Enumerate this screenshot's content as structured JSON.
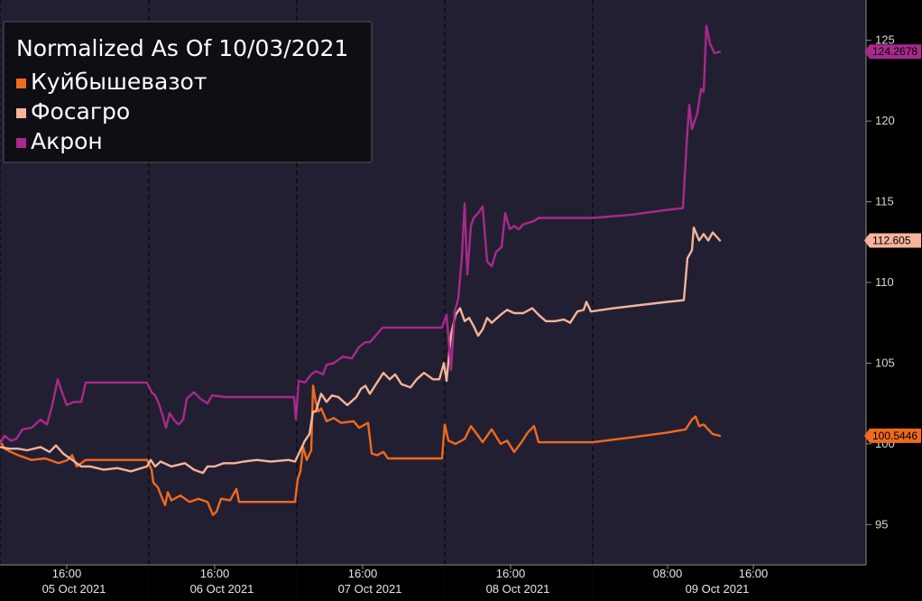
{
  "chart_data": {
    "type": "line",
    "title": "Normalized As Of 10/03/2021",
    "xlabel": "",
    "ylabel": "",
    "ylim": [
      92.5,
      127.5
    ],
    "yticks": [
      95,
      100,
      105,
      110,
      115,
      120,
      125
    ],
    "grid": "vertical day separators (dashed)",
    "legend_position": "top-left",
    "x_major_labels": [
      "05 Oct 2021",
      "06 Oct 2021",
      "07 Oct 2021",
      "08 Oct 2021",
      "09 Oct 2021"
    ],
    "x_minor_labels": [
      "16:00",
      "16:00",
      "16:00",
      "16:00",
      "08:00",
      "16:00"
    ],
    "series": [
      {
        "name": "Куйбышевазот",
        "color": "#f06a1d",
        "last_value": "100.5446",
        "values": [
          [
            0,
            100.2
          ],
          [
            5,
            99.7
          ],
          [
            12,
            99.5
          ],
          [
            20,
            99.3
          ],
          [
            35,
            99.0
          ],
          [
            50,
            99.1
          ],
          [
            65,
            98.8
          ],
          [
            75,
            99.0
          ],
          [
            80,
            99.3
          ],
          [
            85,
            98.6
          ],
          [
            95,
            99.0
          ],
          [
            120,
            99.0
          ],
          [
            150,
            99.0
          ],
          [
            163,
            99.0
          ],
          [
            168,
            98.4
          ],
          [
            170,
            97.6
          ],
          [
            175,
            97.3
          ],
          [
            180,
            96.6
          ],
          [
            183,
            96.2
          ],
          [
            186,
            97.0
          ],
          [
            190,
            96.5
          ],
          [
            200,
            96.8
          ],
          [
            210,
            96.4
          ],
          [
            220,
            96.6
          ],
          [
            230,
            96.4
          ],
          [
            236,
            95.6
          ],
          [
            240,
            95.8
          ],
          [
            245,
            96.6
          ],
          [
            255,
            96.5
          ],
          [
            262,
            97.2
          ],
          [
            265,
            96.4
          ],
          [
            280,
            96.4
          ],
          [
            300,
            96.4
          ],
          [
            327,
            96.4
          ],
          [
            330,
            97.8
          ],
          [
            333,
            98.3
          ],
          [
            336,
            99.8
          ],
          [
            340,
            99.0
          ],
          [
            345,
            99.6
          ],
          [
            347,
            103.6
          ],
          [
            350,
            102.6
          ],
          [
            353,
            102.0
          ],
          [
            356,
            102.2
          ],
          [
            362,
            101.4
          ],
          [
            370,
            101.6
          ],
          [
            378,
            101.3
          ],
          [
            392,
            101.4
          ],
          [
            398,
            101.0
          ],
          [
            408,
            101.3
          ],
          [
            412,
            99.4
          ],
          [
            418,
            99.3
          ],
          [
            425,
            99.5
          ],
          [
            430,
            99.1
          ],
          [
            450,
            99.1
          ],
          [
            470,
            99.1
          ],
          [
            490,
            99.1
          ],
          [
            493,
            101.2
          ],
          [
            497,
            100.2
          ],
          [
            505,
            100.0
          ],
          [
            515,
            100.3
          ],
          [
            522,
            101.1
          ],
          [
            530,
            100.5
          ],
          [
            535,
            100.1
          ],
          [
            545,
            100.9
          ],
          [
            555,
            100.0
          ],
          [
            562,
            100.2
          ],
          [
            570,
            99.5
          ],
          [
            578,
            100.1
          ],
          [
            585,
            100.7
          ],
          [
            592,
            101.1
          ],
          [
            597,
            100.1
          ],
          [
            620,
            100.1
          ],
          [
            657,
            100.1
          ],
          [
            700,
            100.4
          ],
          [
            740,
            100.7
          ],
          [
            760,
            100.9
          ],
          [
            767,
            101.5
          ],
          [
            771,
            101.7
          ],
          [
            775,
            101.1
          ],
          [
            780,
            101.2
          ],
          [
            785,
            100.9
          ],
          [
            790,
            100.6
          ],
          [
            798,
            100.5
          ]
        ]
      },
      {
        "name": "Фосагро",
        "color": "#f5b49a",
        "last_value": "112.605",
        "values": [
          [
            0,
            99.8
          ],
          [
            10,
            99.7
          ],
          [
            20,
            99.7
          ],
          [
            30,
            99.6
          ],
          [
            45,
            99.8
          ],
          [
            55,
            99.5
          ],
          [
            62,
            99.9
          ],
          [
            70,
            99.4
          ],
          [
            80,
            99.0
          ],
          [
            90,
            98.6
          ],
          [
            100,
            98.6
          ],
          [
            115,
            98.4
          ],
          [
            130,
            98.5
          ],
          [
            145,
            98.3
          ],
          [
            163,
            98.6
          ],
          [
            167,
            99.0
          ],
          [
            172,
            98.6
          ],
          [
            178,
            98.9
          ],
          [
            190,
            98.6
          ],
          [
            205,
            98.8
          ],
          [
            215,
            98.4
          ],
          [
            225,
            98.2
          ],
          [
            230,
            98.6
          ],
          [
            238,
            98.6
          ],
          [
            248,
            98.8
          ],
          [
            260,
            98.8
          ],
          [
            270,
            98.9
          ],
          [
            285,
            99.0
          ],
          [
            300,
            98.9
          ],
          [
            320,
            99.0
          ],
          [
            327,
            98.9
          ],
          [
            333,
            99.6
          ],
          [
            338,
            100.2
          ],
          [
            343,
            100.6
          ],
          [
            347,
            102.0
          ],
          [
            350,
            102.0
          ],
          [
            356,
            103.1
          ],
          [
            362,
            102.6
          ],
          [
            368,
            103.0
          ],
          [
            375,
            102.9
          ],
          [
            385,
            102.4
          ],
          [
            395,
            102.9
          ],
          [
            400,
            103.4
          ],
          [
            405,
            103.6
          ],
          [
            410,
            103.1
          ],
          [
            418,
            103.8
          ],
          [
            425,
            104.4
          ],
          [
            432,
            104.0
          ],
          [
            438,
            104.3
          ],
          [
            445,
            103.7
          ],
          [
            455,
            103.5
          ],
          [
            462,
            104.0
          ],
          [
            470,
            104.4
          ],
          [
            480,
            104.0
          ],
          [
            487,
            104.0
          ],
          [
            492,
            105.0
          ],
          [
            495,
            103.9
          ],
          [
            500,
            106.8
          ],
          [
            505,
            108.0
          ],
          [
            510,
            108.4
          ],
          [
            515,
            107.6
          ],
          [
            520,
            107.8
          ],
          [
            525,
            107.3
          ],
          [
            530,
            106.7
          ],
          [
            535,
            107.1
          ],
          [
            540,
            107.8
          ],
          [
            545,
            107.5
          ],
          [
            555,
            108.0
          ],
          [
            562,
            108.3
          ],
          [
            570,
            108.1
          ],
          [
            580,
            108.1
          ],
          [
            590,
            108.4
          ],
          [
            597,
            108.0
          ],
          [
            605,
            107.6
          ],
          [
            615,
            107.6
          ],
          [
            625,
            107.7
          ],
          [
            632,
            107.5
          ],
          [
            640,
            108.2
          ],
          [
            647,
            108.3
          ],
          [
            650,
            108.8
          ],
          [
            655,
            108.2
          ],
          [
            680,
            108.4
          ],
          [
            710,
            108.6
          ],
          [
            740,
            108.8
          ],
          [
            758,
            108.9
          ],
          [
            762,
            111.5
          ],
          [
            767,
            112.0
          ],
          [
            769,
            113.4
          ],
          [
            775,
            112.6
          ],
          [
            780,
            113.0
          ],
          [
            785,
            112.6
          ],
          [
            790,
            113.1
          ],
          [
            798,
            112.6
          ]
        ]
      },
      {
        "name": "Акрон",
        "color": "#a72a8c",
        "last_value": "124.2678",
        "values": [
          [
            0,
            100.0
          ],
          [
            5,
            100.5
          ],
          [
            12,
            100.2
          ],
          [
            18,
            100.3
          ],
          [
            25,
            100.9
          ],
          [
            35,
            101.0
          ],
          [
            45,
            101.5
          ],
          [
            52,
            101.2
          ],
          [
            58,
            102.4
          ],
          [
            64,
            104.0
          ],
          [
            68,
            103.3
          ],
          [
            74,
            102.4
          ],
          [
            82,
            102.6
          ],
          [
            90,
            102.6
          ],
          [
            95,
            103.8
          ],
          [
            100,
            103.8
          ],
          [
            120,
            103.8
          ],
          [
            150,
            103.8
          ],
          [
            163,
            103.8
          ],
          [
            168,
            103.2
          ],
          [
            172,
            103.0
          ],
          [
            176,
            102.5
          ],
          [
            180,
            101.8
          ],
          [
            184,
            101.0
          ],
          [
            188,
            101.9
          ],
          [
            194,
            101.4
          ],
          [
            198,
            101.2
          ],
          [
            203,
            101.5
          ],
          [
            207,
            102.8
          ],
          [
            215,
            103.2
          ],
          [
            222,
            102.8
          ],
          [
            230,
            102.5
          ],
          [
            235,
            103.0
          ],
          [
            250,
            102.9
          ],
          [
            270,
            102.9
          ],
          [
            300,
            102.9
          ],
          [
            326,
            102.9
          ],
          [
            328,
            101.5
          ],
          [
            331,
            103.9
          ],
          [
            338,
            103.8
          ],
          [
            345,
            104.3
          ],
          [
            350,
            104.5
          ],
          [
            358,
            104.3
          ],
          [
            362,
            104.9
          ],
          [
            370,
            105.0
          ],
          [
            380,
            105.4
          ],
          [
            390,
            105.3
          ],
          [
            398,
            106.0
          ],
          [
            405,
            106.3
          ],
          [
            410,
            106.3
          ],
          [
            418,
            106.8
          ],
          [
            424,
            107.2
          ],
          [
            430,
            107.2
          ],
          [
            450,
            107.2
          ],
          [
            470,
            107.2
          ],
          [
            490,
            107.2
          ],
          [
            495,
            108.0
          ],
          [
            500,
            104.6
          ],
          [
            504,
            108.2
          ],
          [
            508,
            109.0
          ],
          [
            512,
            111.6
          ],
          [
            515,
            114.9
          ],
          [
            518,
            110.5
          ],
          [
            522,
            113.5
          ],
          [
            525,
            114.0
          ],
          [
            530,
            114.3
          ],
          [
            535,
            114.7
          ],
          [
            540,
            111.3
          ],
          [
            545,
            111.0
          ],
          [
            550,
            111.9
          ],
          [
            556,
            112.2
          ],
          [
            560,
            114.3
          ],
          [
            565,
            113.3
          ],
          [
            570,
            113.5
          ],
          [
            575,
            113.3
          ],
          [
            580,
            113.6
          ],
          [
            586,
            113.7
          ],
          [
            592,
            113.8
          ],
          [
            597,
            114.0
          ],
          [
            620,
            114.0
          ],
          [
            657,
            114.0
          ],
          [
            700,
            114.2
          ],
          [
            740,
            114.5
          ],
          [
            757,
            114.6
          ],
          [
            761,
            118.5
          ],
          [
            764,
            121.0
          ],
          [
            767,
            119.5
          ],
          [
            773,
            120.5
          ],
          [
            777,
            122.0
          ],
          [
            780,
            121.8
          ],
          [
            783,
            125.9
          ],
          [
            787,
            124.8
          ],
          [
            792,
            124.2
          ],
          [
            798,
            124.3
          ]
        ]
      }
    ]
  }
}
